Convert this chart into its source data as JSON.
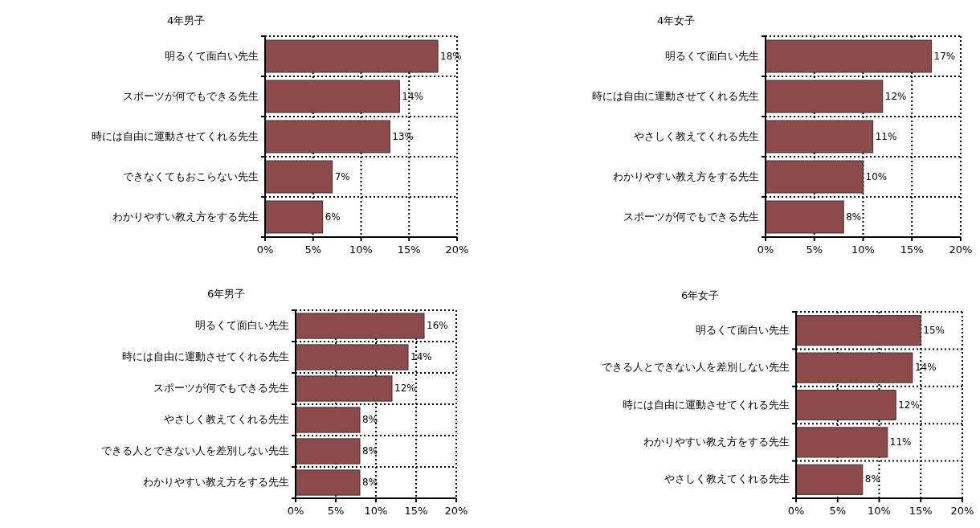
{
  "chart_data": [
    {
      "type": "bar",
      "orientation": "horizontal",
      "title": "4年男子",
      "categories": [
        "明るくて面白い先生",
        "スポーツが何でもできる先生",
        "時には自由に運動させてくれる先生",
        "できなくてもおこらない先生",
        "わかりやすい教え方をする先生"
      ],
      "values": [
        18,
        14,
        13,
        7,
        6
      ],
      "value_labels": [
        "18%",
        "14%",
        "13%",
        "7%",
        "6%"
      ],
      "color": "#8c4a4a",
      "xlim": [
        0,
        20
      ],
      "xticks": [
        {
          "value": 0,
          "label": "0%"
        },
        {
          "value": 5,
          "label": "5%"
        },
        {
          "value": 10,
          "label": "10%"
        },
        {
          "value": 15,
          "label": "15%"
        },
        {
          "value": 20,
          "label": "20%"
        }
      ],
      "grid": true
    },
    {
      "type": "bar",
      "orientation": "horizontal",
      "title": "4年女子",
      "categories": [
        "明るくて面白い先生",
        "時には自由に運動させてくれる先生",
        "やさしく教えてくれる先生",
        "わかりやすい教え方をする先生",
        "スポーツが何でもできる先生"
      ],
      "values": [
        17,
        12,
        11,
        10,
        8
      ],
      "value_labels": [
        "17%",
        "12%",
        "11%",
        "10%",
        "8%"
      ],
      "color": "#8c4a4a",
      "xlim": [
        0,
        20
      ],
      "xticks": [
        {
          "value": 0,
          "label": "0%"
        },
        {
          "value": 5,
          "label": "5%"
        },
        {
          "value": 10,
          "label": "10%"
        },
        {
          "value": 15,
          "label": "15%"
        },
        {
          "value": 20,
          "label": "20%"
        }
      ],
      "grid": true
    },
    {
      "type": "bar",
      "orientation": "horizontal",
      "title": "6年男子",
      "categories": [
        "明るくて面白い先生",
        "時には自由に運動させてくれる先生",
        "スポーツが何でもできる先生",
        "やさしく教えてくれる先生",
        "できる人とできない人を差別しない先生",
        "わかりやすい教え方をする先生"
      ],
      "values": [
        16,
        14,
        12,
        8,
        8,
        8
      ],
      "value_labels": [
        "16%",
        "14%",
        "12%",
        "8%",
        "8%",
        "8%"
      ],
      "color": "#8c4a4a",
      "xlim": [
        0,
        20
      ],
      "xticks": [
        {
          "value": 0,
          "label": "0%"
        },
        {
          "value": 5,
          "label": "5%"
        },
        {
          "value": 10,
          "label": "10%"
        },
        {
          "value": 15,
          "label": "15%"
        },
        {
          "value": 20,
          "label": "20%"
        }
      ],
      "grid": true
    },
    {
      "type": "bar",
      "orientation": "horizontal",
      "title": "6年女子",
      "categories": [
        "明るくて面白い先生",
        "できる人とできない人を差別しない先生",
        "時には自由に運動させてくれる先生",
        "わかりやすい教え方をする先生",
        "やさしく教えてくれる先生"
      ],
      "values": [
        15,
        14,
        12,
        11,
        8
      ],
      "value_labels": [
        "15%",
        "14%",
        "12%",
        "11%",
        "8%"
      ],
      "color": "#8c4a4a",
      "xlim": [
        0,
        20
      ],
      "xticks": [
        {
          "value": 0,
          "label": "0%"
        },
        {
          "value": 5,
          "label": "5%"
        },
        {
          "value": 10,
          "label": "10%"
        },
        {
          "value": 15,
          "label": "15%"
        },
        {
          "value": 20,
          "label": "20%"
        }
      ],
      "grid": true
    }
  ]
}
